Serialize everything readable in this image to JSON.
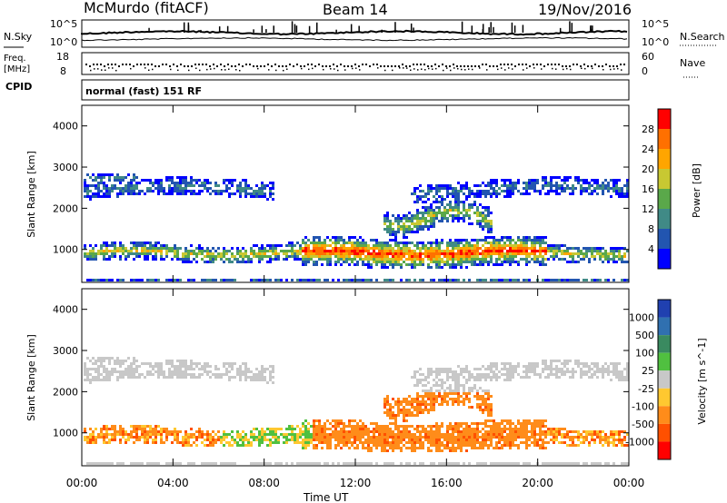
{
  "header": {
    "station": "McMurdo (fitACF)",
    "beam": "Beam 14",
    "date": "19/Nov/2016"
  },
  "noise_panel": {
    "left_label": "N.Sky",
    "right_label": "N.Search",
    "ticks_left": [
      "10^5",
      "10^0"
    ],
    "ticks_right": [
      "10^5",
      "10^0"
    ]
  },
  "freq_panel": {
    "left_label_1": "Freq.",
    "left_label_2": "[MHz]",
    "right_label": "Nave",
    "ticks_left": [
      "18",
      "8"
    ],
    "ticks_right": [
      "60",
      "0"
    ]
  },
  "cpid_panel": {
    "label": "CPID",
    "text": "normal (fast) 151 RF"
  },
  "chart_data": [
    {
      "type": "heatmap",
      "name": "power",
      "ylabel": "Slant Range [km]",
      "colorbar_label": "Power [dB]",
      "yticks": [
        "1000",
        "2000",
        "3000",
        "4000"
      ],
      "ylim": [
        200,
        4500
      ],
      "colorbar_ticks": [
        "4",
        "8",
        "12",
        "16",
        "20",
        "24",
        "28"
      ],
      "colorbar_range": [
        0,
        32
      ],
      "colors": [
        "#0000ff",
        "#2255b0",
        "#408a86",
        "#5aa84a",
        "#c8c832",
        "#ffa500",
        "#ff7000",
        "#ff0000"
      ]
    },
    {
      "type": "heatmap",
      "name": "velocity",
      "ylabel": "Slant Range [km]",
      "colorbar_label": "Velocity [m s^-1]",
      "yticks": [
        "1000",
        "2000",
        "3000",
        "4000"
      ],
      "ylim": [
        200,
        4500
      ],
      "colorbar_ticks": [
        "1000",
        "500",
        "100",
        "25",
        "-25",
        "-100",
        "-500",
        "-1000"
      ],
      "colors": [
        "#2040b0",
        "#3070b0",
        "#3a8a60",
        "#50c040",
        "#c8c8c8",
        "#ffc830",
        "#ff8c1a",
        "#ff5000",
        "#ff0000"
      ]
    }
  ],
  "x_axis": {
    "ticks": [
      "00:00",
      "04:00",
      "08:00",
      "12:00",
      "16:00",
      "20:00",
      "00:00"
    ],
    "label": "Time UT"
  }
}
